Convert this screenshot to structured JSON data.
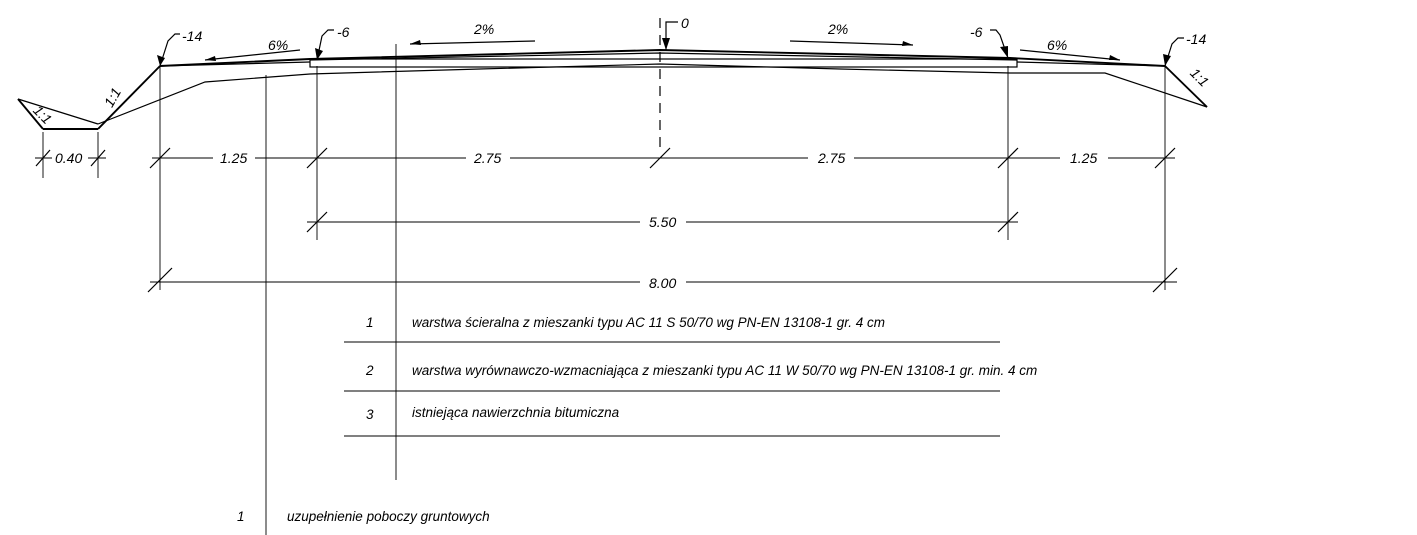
{
  "elevations": {
    "left_edge": "-14",
    "left_shoulder": "-6",
    "axis": "0",
    "right_shoulder": "-6",
    "right_edge": "-14"
  },
  "slopes": {
    "left_shoulder": "6%",
    "left_lane": "2%",
    "right_lane": "2%",
    "right_shoulder": "6%",
    "ditch_inner": "1:1",
    "ditch_outer": "1:1",
    "right_embankment": "1:1"
  },
  "dimensions": {
    "ditch_bottom": "0.40",
    "left_shoulder": "1.25",
    "left_lane": "2.75",
    "right_lane": "2.75",
    "right_shoulder": "1.25",
    "carriageway": "5.50",
    "total": "8.00"
  },
  "layers": [
    {
      "num": "1",
      "text": "warstwa ścieralna z mieszanki typu AC 11 S 50/70 wg PN-EN 13108-1 gr. 4 cm"
    },
    {
      "num": "2",
      "text": "warstwa wyrównawczo-wzmacniająca z mieszanki typu AC 11 W 50/70 wg PN-EN 13108-1 gr. min. 4 cm"
    },
    {
      "num": "3",
      "text": "istniejąca nawierzchnia bitumiczna"
    }
  ],
  "shoulder_layer": {
    "num": "1",
    "text": "uzupełnienie poboczy gruntowych"
  }
}
